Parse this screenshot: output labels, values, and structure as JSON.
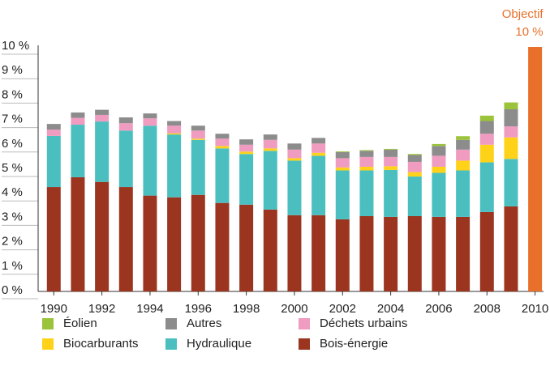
{
  "chart_data": {
    "type": "stacked-bar",
    "x": [
      1990,
      1991,
      1992,
      1993,
      1994,
      1995,
      1996,
      1997,
      1998,
      1999,
      2000,
      2001,
      2002,
      2003,
      2004,
      2005,
      2006,
      2007,
      2008,
      2009
    ],
    "series": [
      {
        "name": "Bois-énergie",
        "color": "#9b3520",
        "values": [
          4.27,
          4.67,
          4.48,
          4.27,
          3.92,
          3.85,
          3.95,
          3.62,
          3.55,
          3.35,
          3.12,
          3.12,
          2.95,
          3.08,
          3.05,
          3.08,
          3.05,
          3.05,
          3.25,
          3.48
        ]
      },
      {
        "name": "Hydraulique",
        "color": "#4bbfc0",
        "values": [
          2.09,
          2.15,
          2.47,
          2.31,
          2.86,
          2.57,
          2.25,
          2.23,
          2.07,
          2.4,
          2.23,
          2.43,
          2.0,
          1.87,
          1.92,
          1.62,
          1.8,
          1.9,
          2.03,
          1.94
        ]
      },
      {
        "name": "Biocarburants",
        "color": "#ffd21a",
        "values": [
          0,
          0,
          0,
          0,
          0,
          0.05,
          0.05,
          0.1,
          0.1,
          0.1,
          0.1,
          0.12,
          0.12,
          0.15,
          0.15,
          0.18,
          0.25,
          0.4,
          0.72,
          0.88
        ]
      },
      {
        "name": "Déchets urbains",
        "color": "#f09bc0",
        "values": [
          0.26,
          0.28,
          0.27,
          0.3,
          0.3,
          0.31,
          0.33,
          0.3,
          0.28,
          0.35,
          0.35,
          0.38,
          0.38,
          0.4,
          0.38,
          0.42,
          0.45,
          0.45,
          0.45,
          0.45
        ]
      },
      {
        "name": "Autres",
        "color": "#8c8c8c",
        "values": [
          0.23,
          0.22,
          0.21,
          0.24,
          0.2,
          0.19,
          0.2,
          0.2,
          0.22,
          0.22,
          0.25,
          0.23,
          0.25,
          0.25,
          0.3,
          0.28,
          0.4,
          0.4,
          0.52,
          0.7
        ]
      },
      {
        "name": "Éolien",
        "color": "#9bc43a",
        "values": [
          0,
          0,
          0,
          0,
          0,
          0,
          0,
          0,
          0,
          0,
          0,
          0,
          0.03,
          0.03,
          0.03,
          0.04,
          0.08,
          0.15,
          0.22,
          0.28
        ]
      }
    ],
    "target": {
      "x": 2010,
      "value": 10,
      "label": "Objectif",
      "value_label": "10 %",
      "color": "#e8702a"
    },
    "xlim": [
      1989.35,
      2010.35
    ],
    "xticks": [
      1990,
      1992,
      1994,
      1996,
      1998,
      2000,
      2002,
      2004,
      2006,
      2008,
      2010
    ],
    "ylim": [
      0,
      10
    ],
    "yticks": [
      {
        "value": 0,
        "label": "0 %"
      },
      {
        "value": 1,
        "label": "1 %"
      },
      {
        "value": 2,
        "label": "2 %"
      },
      {
        "value": 3,
        "label": "3 %"
      },
      {
        "value": 4,
        "label": "4 %"
      },
      {
        "value": 5,
        "label": "5 %"
      },
      {
        "value": 6,
        "label": "6 %"
      },
      {
        "value": 7,
        "label": "7 %"
      },
      {
        "value": 8,
        "label": "8 %"
      },
      {
        "value": 9,
        "label": "9 %"
      },
      {
        "value": 10,
        "label": "10 %"
      }
    ]
  }
}
